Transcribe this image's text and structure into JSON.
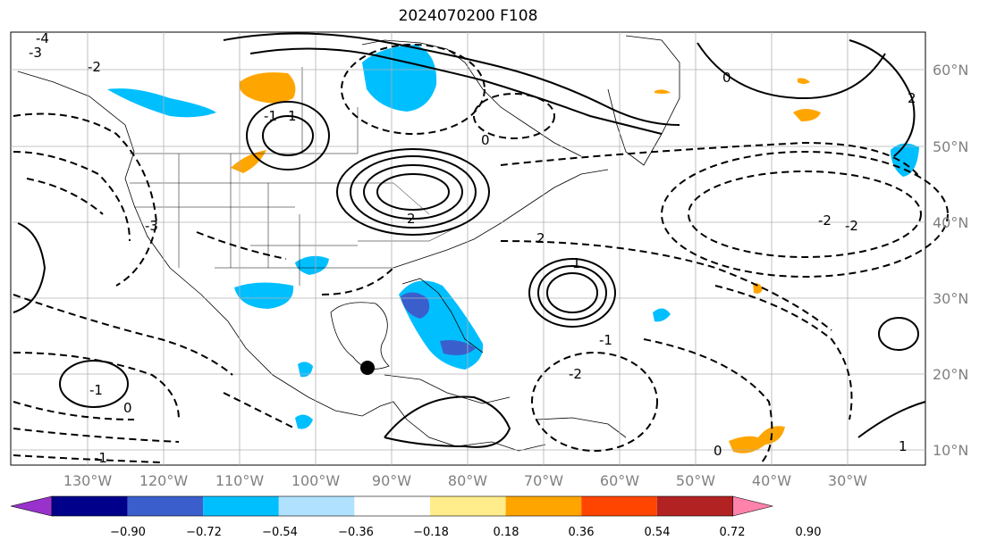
{
  "title": "2024070200 F108",
  "map": {
    "lat_labels": [
      "60°N",
      "50°N",
      "40°N",
      "30°N",
      "20°N",
      "10°N"
    ],
    "lon_labels": [
      "130°W",
      "120°W",
      "110°W",
      "100°W",
      "90°W",
      "80°W",
      "70°W",
      "60°W",
      "50°W",
      "40°W",
      "30°W"
    ],
    "contour_labels": [
      "-4",
      "-3",
      "-2",
      "-1",
      "0",
      "1",
      "2",
      "-2",
      "0",
      "-3",
      "1",
      "-1",
      "0",
      "-1",
      "-2",
      "2",
      "0",
      "-1",
      "-2",
      "1",
      "2"
    ],
    "marker_icon": "storm-center-dot-icon"
  },
  "colorbar": {
    "ticks": [
      "−0.90",
      "−0.72",
      "−0.54",
      "−0.36",
      "−0.18",
      "0.18",
      "0.36",
      "0.54",
      "0.72",
      "0.90"
    ],
    "colors": [
      "#9932cc",
      "#00008b",
      "#3a5fcd",
      "#00bfff",
      "#b0e2ff",
      "#ffffff",
      "#ffec8b",
      "#ffa500",
      "#ff4500",
      "#b22222",
      "#ff82ab"
    ]
  }
}
